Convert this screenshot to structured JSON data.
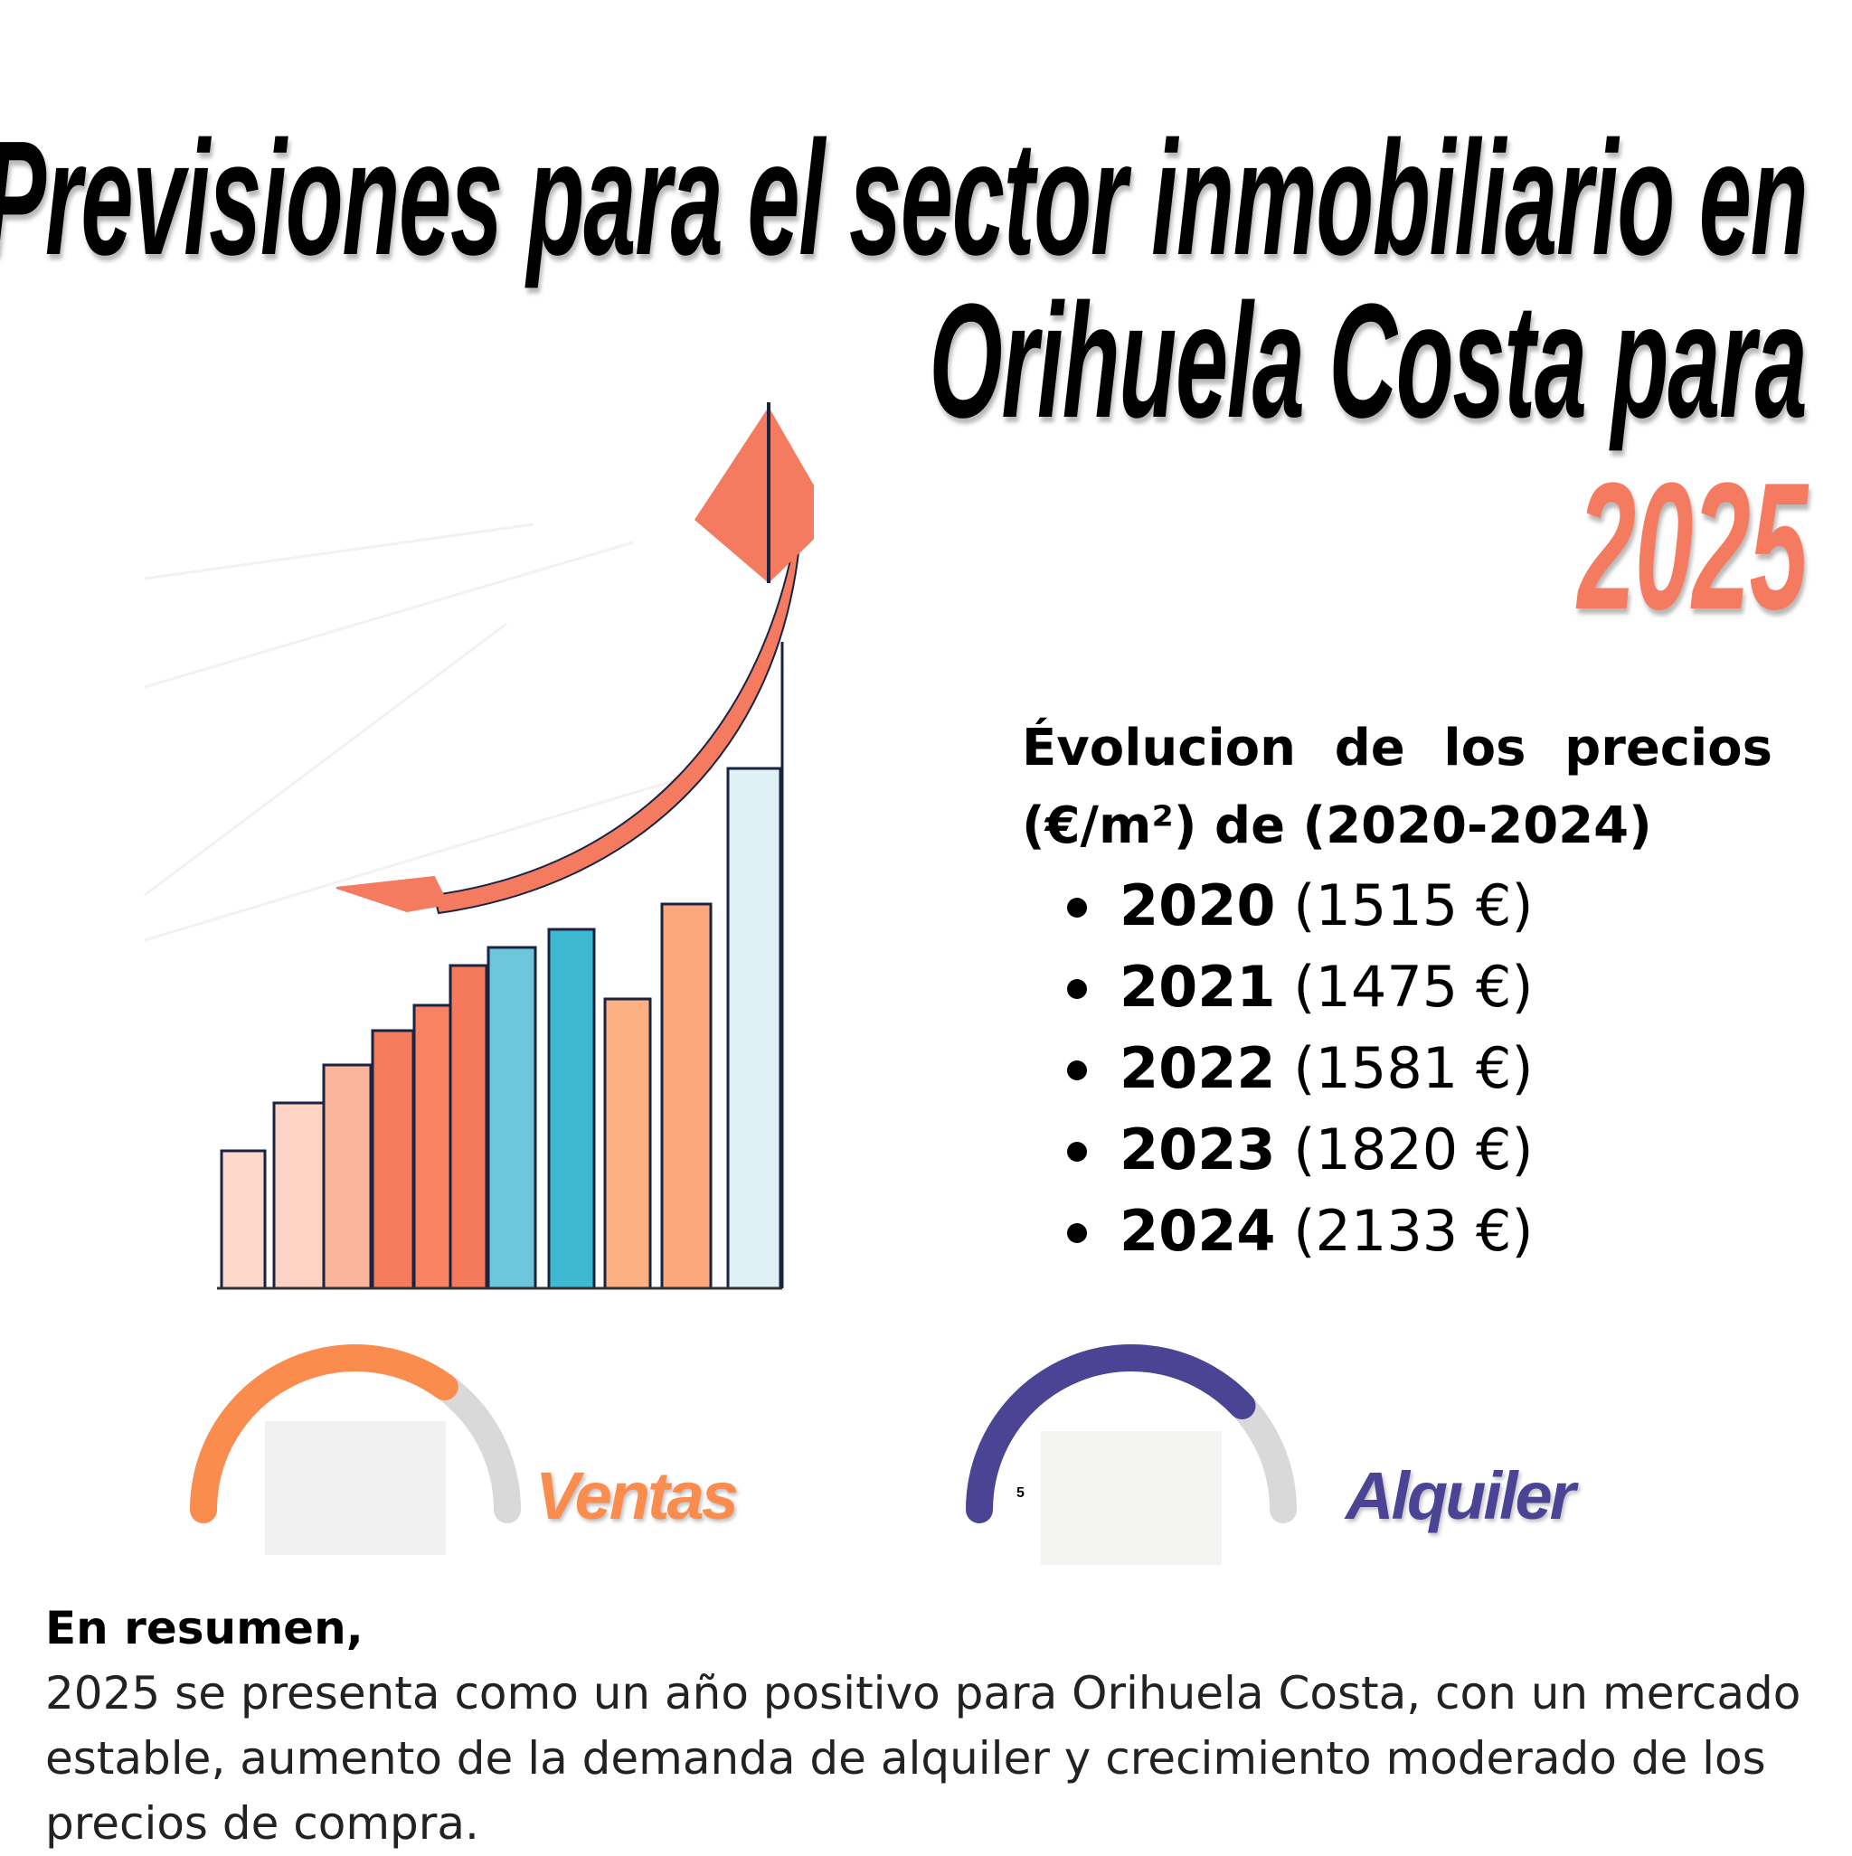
{
  "header": {
    "title_line1": "Previsiones para el sector inmobiliario en",
    "title_line2": "Orihuela Costa para",
    "title_year": "2025",
    "year_color": "#f47a60"
  },
  "illustration": {
    "icon": "growth-bar-chart-arrow-icon",
    "colors": [
      "#fdd9cc",
      "#fdd3c6",
      "#fbb59b",
      "#f57b5e",
      "#f88262",
      "#f57a5c",
      "#6cc6dc",
      "#3eb9d2",
      "#fcb083",
      "#fca77e",
      "#e0f1f6"
    ]
  },
  "prices": {
    "heading": "Évolucion de los precios (€/m²) de  (2020-2024)",
    "items": [
      {
        "year": "2020",
        "value": "(1515 €)"
      },
      {
        "year": "2021",
        "value": "(1475 €)"
      },
      {
        "year": "2022",
        "value": "(1581 €)"
      },
      {
        "year": "2023",
        "value": "(1820 €)"
      },
      {
        "year": "2024",
        "value": "(2133 €)"
      }
    ]
  },
  "gauges": {
    "ventas": {
      "label": "Ventas",
      "level": 0.7,
      "color": "#fa8c4e",
      "track_color": "#d9d9d9"
    },
    "alquiler": {
      "label": "Alquiler",
      "level": 0.76,
      "tick": "5",
      "color": "#4b4494",
      "track_color": "#d9d9d9"
    }
  },
  "summary": {
    "title": "En resumen,",
    "text": "2025 se presenta como un año positivo para Orihuela Costa, con un mercado estable, aumento de la demanda de alquiler y crecimiento moderado de los precios de compra."
  }
}
